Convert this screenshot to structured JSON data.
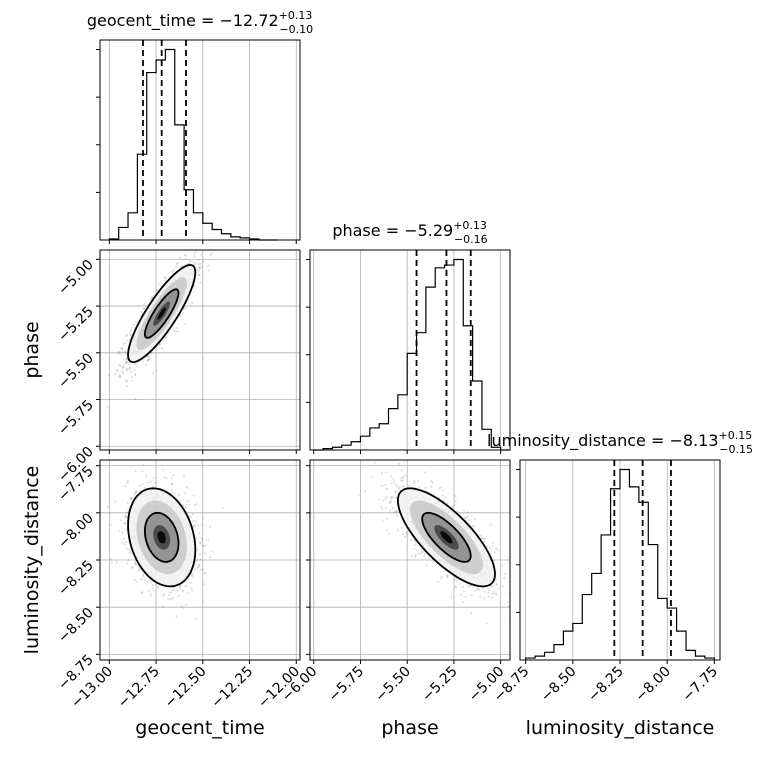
{
  "chart_data": {
    "type": "corner",
    "params": [
      "geocent_time",
      "phase",
      "luminosity_distance"
    ],
    "titles": [
      {
        "name": "geocent_time",
        "median": "−12.72",
        "plus": "+0.13",
        "minus": "−0.10"
      },
      {
        "name": "phase",
        "median": "−5.29",
        "plus": "+0.13",
        "minus": "−0.16"
      },
      {
        "name": "luminosity_distance",
        "median": "−8.13",
        "plus": "+0.15",
        "minus": "−0.15"
      }
    ],
    "ranges": {
      "geocent_time": [
        -13.05,
        -11.98
      ],
      "phase": [
        -6.02,
        -4.95
      ],
      "luminosity_distance": [
        -8.78,
        -7.72
      ]
    },
    "ticks": {
      "geocent_time": {
        "values": [
          -13.0,
          -12.75,
          -12.5,
          -12.25,
          -12.0
        ],
        "labels": [
          "−13.00",
          "−12.75",
          "−12.50",
          "−12.25",
          "−12.00"
        ]
      },
      "phase": {
        "values": [
          -6.0,
          -5.75,
          -5.5,
          -5.25,
          -5.0
        ],
        "labels": [
          "−6.00",
          "−5.75",
          "−5.50",
          "−5.25",
          "−5.00"
        ]
      },
      "luminosity_distance": {
        "values": [
          -8.75,
          -8.5,
          -8.25,
          -8.0,
          -7.75
        ],
        "labels": [
          "−8.75",
          "−8.50",
          "−8.25",
          "−8.00",
          "−7.75"
        ]
      }
    },
    "quantiles": {
      "geocent_time": [
        -12.82,
        -12.72,
        -12.59
      ],
      "phase": [
        -5.45,
        -5.29,
        -5.16
      ],
      "luminosity_distance": [
        -8.28,
        -8.13,
        -7.98
      ]
    },
    "histograms": {
      "geocent_time": {
        "edges": [
          -13.0,
          -12.95,
          -12.9,
          -12.85,
          -12.8,
          -12.75,
          -12.7,
          -12.65,
          -12.6,
          -12.55,
          -12.5,
          -12.45,
          -12.4,
          -12.35,
          -12.3,
          -12.25,
          -12.2,
          -12.15,
          -12.1
        ],
        "counts": [
          1,
          12,
          26,
          82,
          160,
          172,
          182,
          110,
          48,
          26,
          16,
          10,
          6,
          3,
          2,
          1,
          0,
          0
        ]
      },
      "phase": {
        "edges": [
          -6.0,
          -5.95,
          -5.9,
          -5.85,
          -5.8,
          -5.75,
          -5.7,
          -5.65,
          -5.6,
          -5.55,
          -5.5,
          -5.45,
          -5.4,
          -5.35,
          -5.3,
          -5.25,
          -5.2,
          -5.15,
          -5.1,
          -5.05,
          -5.0,
          -4.95
        ],
        "counts": [
          0,
          2,
          4,
          7,
          12,
          20,
          32,
          38,
          60,
          80,
          140,
          170,
          236,
          264,
          268,
          276,
          180,
          100,
          30,
          4,
          0
        ]
      },
      "luminosity_distance": {
        "edges": [
          -8.75,
          -8.7,
          -8.65,
          -8.6,
          -8.55,
          -8.5,
          -8.45,
          -8.4,
          -8.35,
          -8.3,
          -8.25,
          -8.2,
          -8.15,
          -8.1,
          -8.05,
          -8.0,
          -7.95,
          -7.9,
          -7.85,
          -7.8,
          -7.75
        ],
        "counts": [
          2,
          4,
          8,
          16,
          30,
          38,
          68,
          90,
          130,
          178,
          198,
          180,
          164,
          120,
          64,
          54,
          30,
          10,
          4,
          2
        ]
      }
    },
    "scatter_samples": {
      "phase_vs_geocent_time": {
        "center": [
          -12.72,
          -5.29
        ],
        "sigma": [
          0.09,
          0.13
        ],
        "rho": 0.85
      },
      "luminosity_distance_vs_geocent_time": {
        "center": [
          -12.72,
          -8.13
        ],
        "sigma": [
          0.09,
          0.13
        ],
        "rho": -0.25
      },
      "luminosity_distance_vs_phase": {
        "center": [
          -5.29,
          -8.13
        ],
        "sigma": [
          0.13,
          0.13
        ],
        "rho": -0.75
      }
    },
    "xlabel": [
      "geocent_time",
      "phase",
      "luminosity_distance"
    ],
    "ylabel": [
      "phase",
      "luminosity_distance"
    ],
    "grid": true
  }
}
